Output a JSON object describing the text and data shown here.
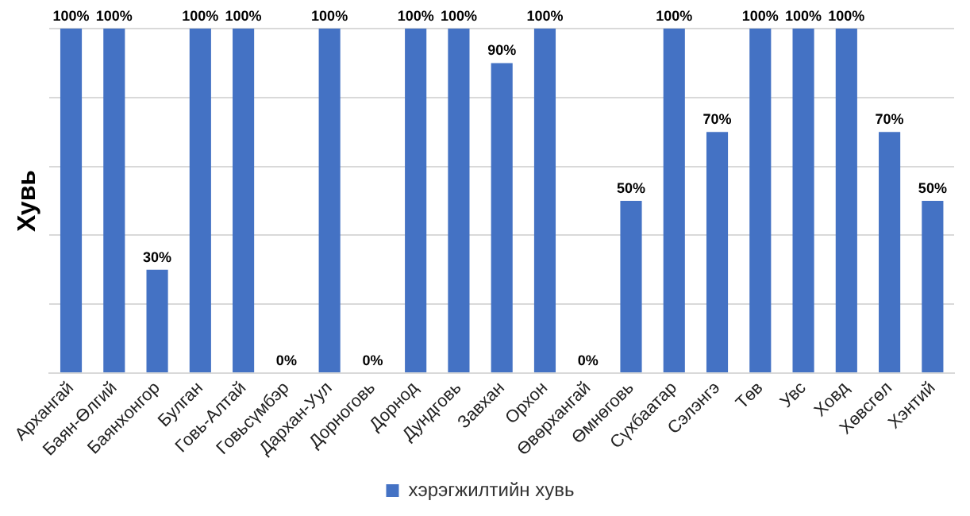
{
  "chart_data": {
    "type": "bar",
    "ylabel": "Хувь",
    "categories": [
      "Архангай",
      "Баян-Өлгий",
      "Баянхонгор",
      "Булган",
      "Говь-Алтай",
      "Говьсүмбэр",
      "Дархан-Уул",
      "Дорноговь",
      "Дорнод",
      "Дундговь",
      "Завхан",
      "Орхон",
      "Өвөрхангай",
      "Өмнөговь",
      "Сүхбаатар",
      "Сэлэнгэ",
      "Төв",
      "Увс",
      "Ховд",
      "Хөвсгөл",
      "Хэнтий"
    ],
    "series": [
      {
        "name": "хэрэгжилтийн хувь",
        "color": "#4472c4",
        "values": [
          100,
          100,
          30,
          100,
          100,
          0,
          100,
          0,
          100,
          100,
          90,
          100,
          0,
          50,
          100,
          70,
          100,
          100,
          100,
          70,
          50
        ],
        "value_labels": [
          "100%",
          "100%",
          "30%",
          "100%",
          "100%",
          "0%",
          "100%",
          "0%",
          "100%",
          "100%",
          "90%",
          "100%",
          "0%",
          "50%",
          "100%",
          "70%",
          "100%",
          "100%",
          "100%",
          "70%",
          "50%"
        ]
      }
    ],
    "ylim": [
      0,
      100
    ],
    "yticks": [
      {
        "value": 0,
        "label": null
      },
      {
        "value": 20,
        "label": null
      },
      {
        "value": 40,
        "label": null
      },
      {
        "value": 60,
        "label": null
      },
      {
        "value": 80,
        "label": null
      },
      {
        "value": 100,
        "label": null
      }
    ],
    "grid": "y",
    "legend": "bottom",
    "tick_labels": "x"
  }
}
